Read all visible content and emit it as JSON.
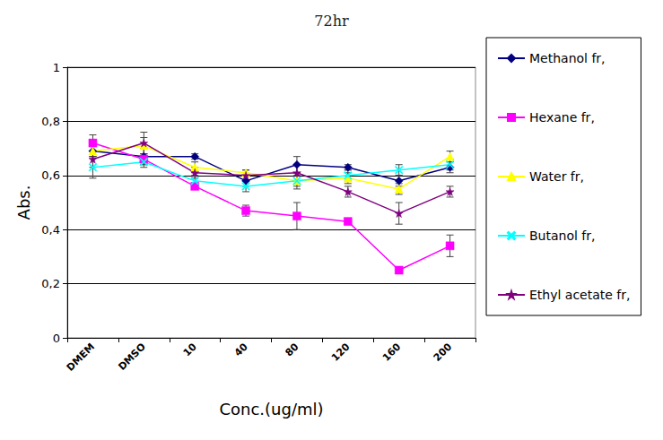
{
  "chart_data": {
    "type": "line",
    "title": "72hr",
    "x_label": "Conc.(ug/ml)",
    "y_label": "Abs.",
    "categories": [
      "DMEM",
      "DMSO",
      "10",
      "40",
      "80",
      "120",
      "160",
      "200"
    ],
    "series": [
      {
        "name": "Methanol fr,",
        "color": "#000080",
        "marker": "diamond",
        "values": [
          0.69,
          0.67,
          0.67,
          0.58,
          0.64,
          0.63,
          0.58,
          0.63
        ],
        "errors": [
          0.02,
          0.03,
          0.01,
          0.02,
          0.03,
          0.01,
          0.02,
          0.02
        ]
      },
      {
        "name": "Hexane fr,",
        "color": "#ff00ff",
        "marker": "square",
        "values": [
          0.72,
          0.66,
          0.56,
          0.47,
          0.45,
          0.43,
          0.25,
          0.34
        ],
        "errors": [
          0.03,
          0.02,
          0.01,
          0.02,
          0.05,
          0.01,
          0.01,
          0.04
        ]
      },
      {
        "name": "Water fr,",
        "color": "#ffff00",
        "marker": "triangle",
        "values": [
          0.69,
          0.71,
          0.63,
          0.61,
          0.58,
          0.59,
          0.55,
          0.67
        ],
        "errors": [
          0.02,
          0.03,
          0.02,
          0.01,
          0.03,
          0.02,
          0.02,
          0.02
        ]
      },
      {
        "name": "Butanol fr,",
        "color": "#00ffff",
        "marker": "x",
        "values": [
          0.63,
          0.65,
          0.58,
          0.56,
          0.58,
          0.6,
          0.62,
          0.64
        ],
        "errors": [
          0.04,
          0.02,
          0.02,
          0.02,
          0.02,
          0.02,
          0.02,
          0.02
        ]
      },
      {
        "name": "Ethyl acetate fr,",
        "color": "#800080",
        "marker": "star",
        "values": [
          0.66,
          0.72,
          0.61,
          0.6,
          0.61,
          0.54,
          0.46,
          0.54
        ],
        "errors": [
          0.03,
          0.04,
          0.02,
          0.02,
          0.03,
          0.02,
          0.04,
          0.02
        ]
      }
    ],
    "ylim": [
      0,
      1
    ],
    "yticks": [
      0,
      {
        "value": 0.2,
        "label": "0,2"
      },
      {
        "value": 0.4,
        "label": "0,4"
      },
      {
        "value": 0.6,
        "label": "0,6"
      },
      {
        "value": 0.8,
        "label": "0,8"
      },
      1
    ],
    "grid": true,
    "legend": "right"
  }
}
